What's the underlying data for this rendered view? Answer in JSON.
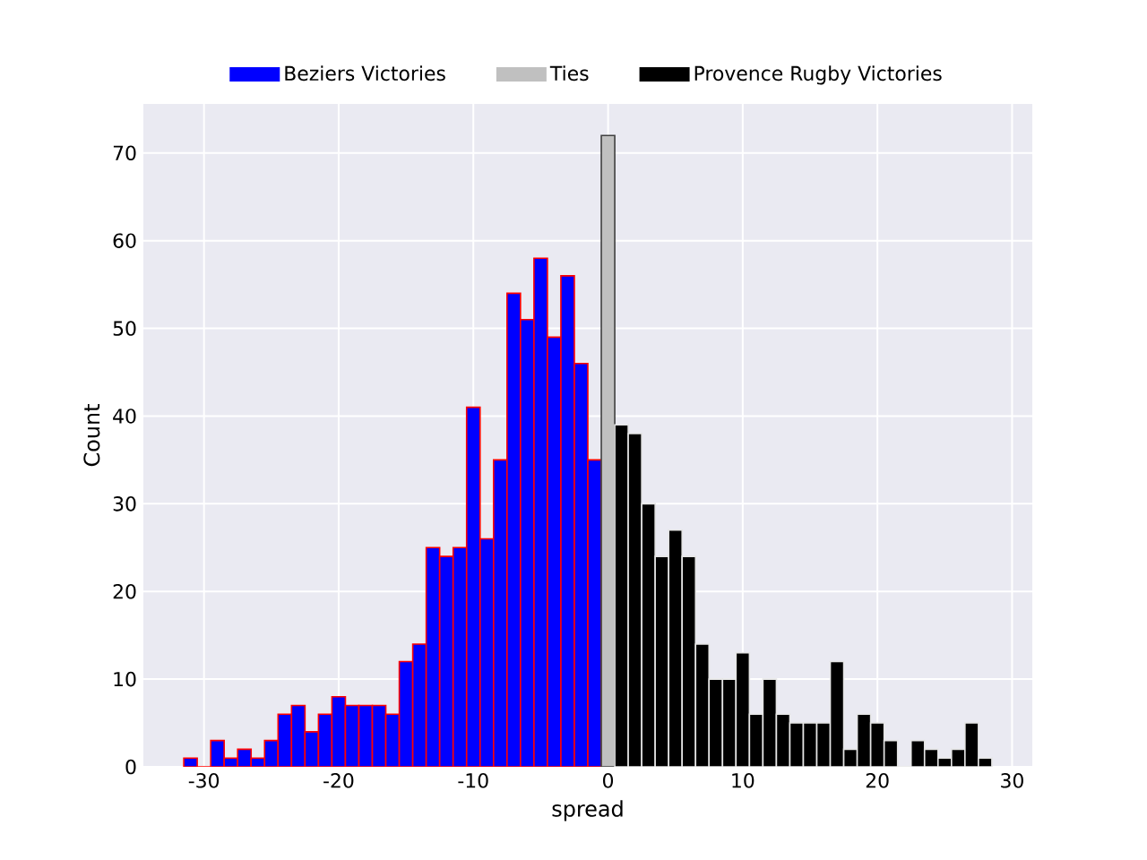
{
  "chart_data": {
    "type": "histogram",
    "xlabel": "spread",
    "ylabel": "Count",
    "bins": [
      -31.5,
      -30.5,
      -29.5,
      -28.5,
      -27.5,
      -26.5,
      -25.5,
      -24.5,
      -23.5,
      -22.5,
      -21.5,
      -20.5,
      -19.5,
      -18.5,
      -17.5,
      -16.5,
      -15.5,
      -14.5,
      -13.5,
      -12.5,
      -11.5,
      -10.5,
      -9.5,
      -8.5,
      -7.5,
      -6.5,
      -5.5,
      -4.5,
      -3.5,
      -2.5,
      -1.5,
      -0.5,
      0.5,
      1.5,
      2.5,
      3.5,
      4.5,
      5.5,
      6.5,
      7.5,
      8.5,
      9.5,
      10.5,
      11.5,
      12.5,
      13.5,
      14.5,
      15.5,
      16.5,
      17.5,
      18.5,
      19.5,
      20.5,
      21.5,
      22.5,
      23.5,
      24.5,
      25.5,
      26.5,
      27.5,
      28.5
    ],
    "series": [
      {
        "name": "Beziers Victories",
        "color": "#0000ff",
        "values": [
          1,
          0,
          3,
          1,
          2,
          1,
          3,
          6,
          7,
          4,
          6,
          8,
          7,
          7,
          7,
          6,
          12,
          14,
          25,
          24,
          25,
          41,
          26,
          35,
          54,
          51,
          58,
          49,
          56,
          46,
          35,
          null,
          null,
          null,
          null,
          null,
          null,
          null,
          null,
          null,
          null,
          null,
          null,
          null,
          null,
          null,
          null,
          null,
          null,
          null,
          null,
          null,
          null,
          null,
          null,
          null,
          null,
          null,
          null,
          null
        ]
      },
      {
        "name": "Ties",
        "color": "#c0c0c0",
        "values": [
          null,
          null,
          null,
          null,
          null,
          null,
          null,
          null,
          null,
          null,
          null,
          null,
          null,
          null,
          null,
          null,
          null,
          null,
          null,
          null,
          null,
          null,
          null,
          null,
          null,
          null,
          null,
          null,
          null,
          null,
          null,
          72,
          null,
          null,
          null,
          null,
          null,
          null,
          null,
          null,
          null,
          null,
          null,
          null,
          null,
          null,
          null,
          null,
          null,
          null,
          null,
          null,
          null,
          null,
          null,
          null,
          null,
          null,
          null,
          null
        ]
      },
      {
        "name": "Provence Rugby Victories",
        "color": "#000000",
        "values": [
          null,
          null,
          null,
          null,
          null,
          null,
          null,
          null,
          null,
          null,
          null,
          null,
          null,
          null,
          null,
          null,
          null,
          null,
          null,
          null,
          null,
          null,
          null,
          null,
          null,
          null,
          null,
          null,
          null,
          null,
          null,
          null,
          39,
          38,
          30,
          24,
          27,
          24,
          14,
          10,
          10,
          13,
          6,
          10,
          6,
          5,
          5,
          5,
          12,
          2,
          6,
          5,
          3,
          0,
          3,
          2,
          1,
          2,
          5,
          1
        ]
      }
    ],
    "xlim": [
      -34.5,
      31.5
    ],
    "ylim": [
      0,
      75.6
    ],
    "xticks": [
      -30,
      -20,
      -10,
      0,
      10,
      20,
      30
    ],
    "yticks": [
      0,
      10,
      20,
      30,
      40,
      50,
      60,
      70
    ],
    "grid": true,
    "legend": "top"
  }
}
